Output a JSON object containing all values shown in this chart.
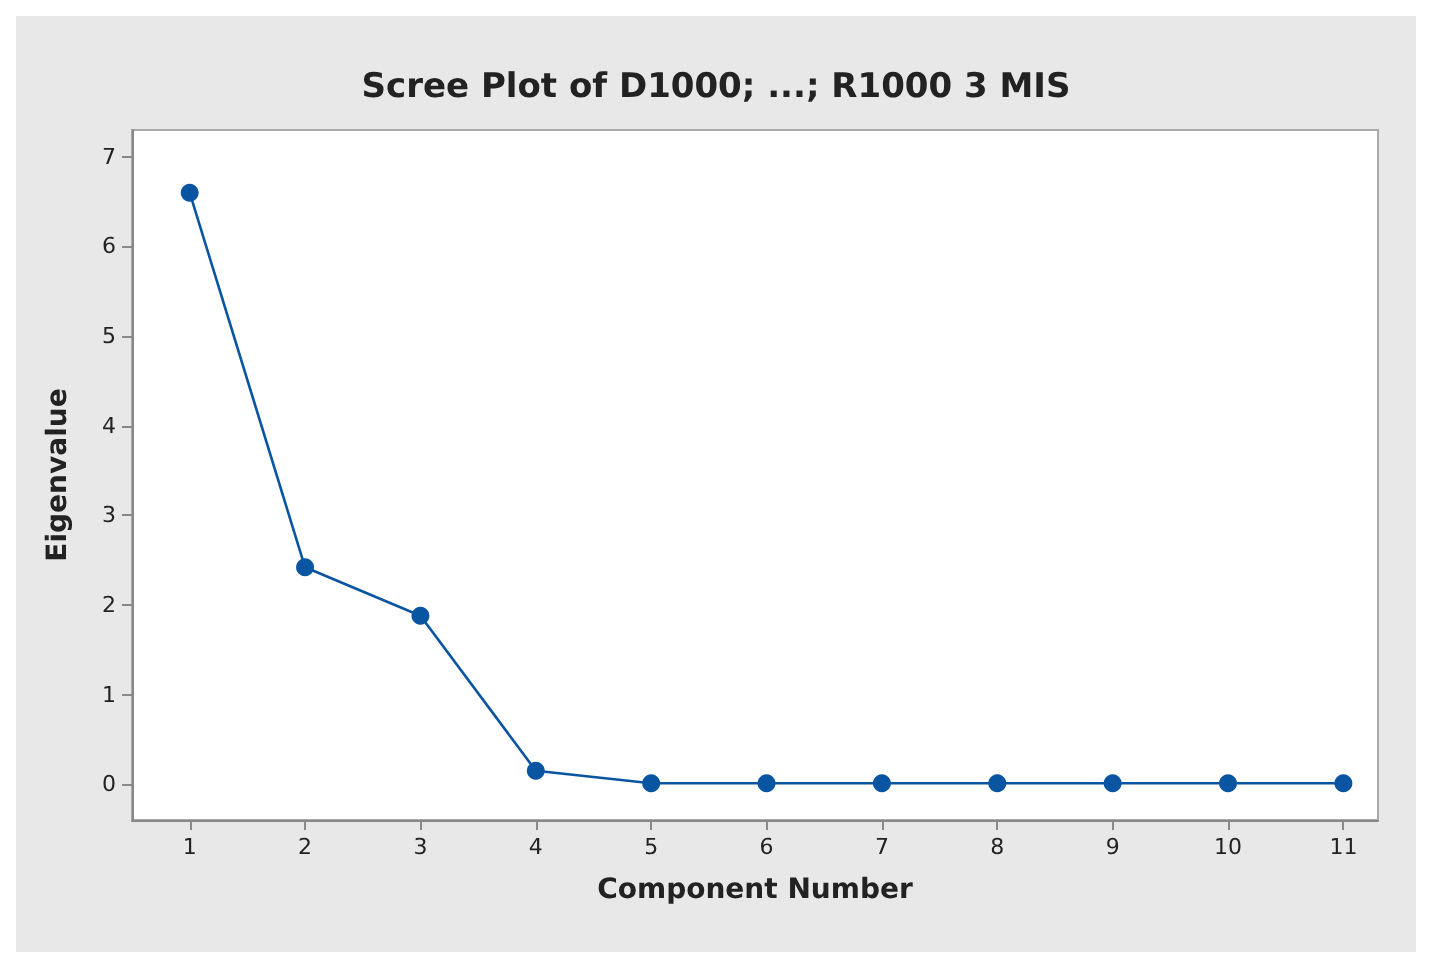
{
  "chart_data": {
    "type": "line",
    "title": "Scree Plot of D1000; ...; R1000 3 MIS",
    "xlabel": "Component Number",
    "ylabel": "Eigenvalue",
    "x": [
      1,
      2,
      3,
      4,
      5,
      6,
      7,
      8,
      9,
      10,
      11
    ],
    "series": [
      {
        "color": "#0a55a2",
        "values": [
          6.6,
          2.42,
          1.88,
          0.15,
          0.01,
          0.01,
          0.01,
          0.01,
          0.01,
          0.01,
          0.01
        ]
      }
    ],
    "xlim": [
      0.5,
      11.3
    ],
    "xticks": [
      1,
      2,
      3,
      4,
      5,
      6,
      7,
      8,
      9,
      10,
      11
    ],
    "ylim": [
      -0.4,
      7.3
    ],
    "yticks": [
      0,
      1,
      2,
      3,
      4,
      5,
      6,
      7
    ],
    "grid": false,
    "marker": "circle",
    "line_style": "solid"
  }
}
